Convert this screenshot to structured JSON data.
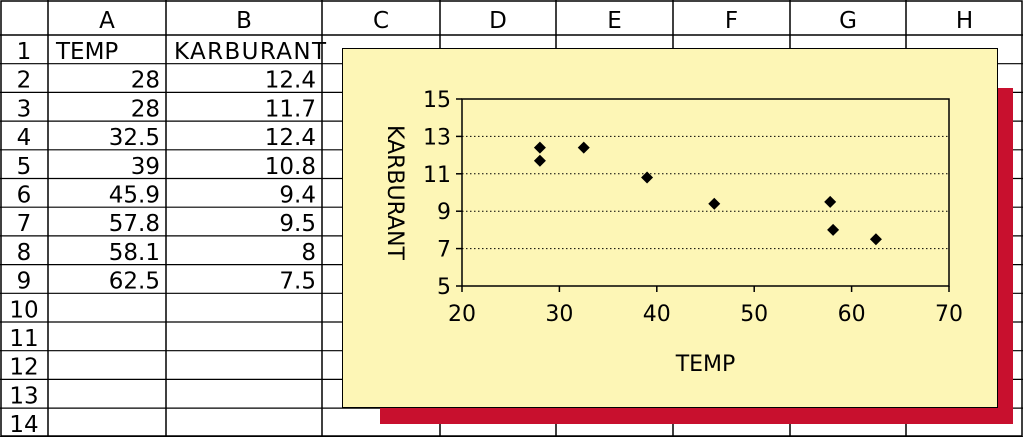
{
  "spreadsheet": {
    "column_headers": [
      "A",
      "B",
      "C",
      "D",
      "E",
      "F",
      "G",
      "H"
    ],
    "row_numbers": [
      "1",
      "2",
      "3",
      "4",
      "5",
      "6",
      "7",
      "8",
      "9",
      "10",
      "11",
      "12",
      "13",
      "14"
    ],
    "rows": [
      [
        "TEMP",
        "KARBURANT"
      ],
      [
        "28",
        "12.4"
      ],
      [
        "28",
        "11.7"
      ],
      [
        "32.5",
        "12.4"
      ],
      [
        "39",
        "10.8"
      ],
      [
        "45.9",
        "9.4"
      ],
      [
        "57.8",
        "9.5"
      ],
      [
        "58.1",
        "8"
      ],
      [
        "62.5",
        "7.5"
      ]
    ]
  },
  "chart_data": {
    "type": "scatter",
    "title": "",
    "xlabel": "TEMP",
    "ylabel": "KARBURANT",
    "xlim": [
      20,
      70
    ],
    "ylim": [
      5,
      15
    ],
    "x_ticks": [
      "20",
      "30",
      "40",
      "50",
      "60",
      "70"
    ],
    "y_ticks": [
      "5",
      "7",
      "9",
      "11",
      "13",
      "15"
    ],
    "grid": "horizontal-dotted",
    "legend": "none",
    "points": [
      {
        "x": 28,
        "y": 12.4
      },
      {
        "x": 28,
        "y": 11.7
      },
      {
        "x": 32.5,
        "y": 12.4
      },
      {
        "x": 39,
        "y": 10.8
      },
      {
        "x": 45.9,
        "y": 9.4
      },
      {
        "x": 57.8,
        "y": 9.5
      },
      {
        "x": 58.1,
        "y": 8
      },
      {
        "x": 62.5,
        "y": 7.5
      }
    ],
    "colors": {
      "chart_background": "#fdf6b6",
      "plot_area": "#fdf6b6",
      "shadow": "#c8102e",
      "marker": "#000000"
    }
  }
}
